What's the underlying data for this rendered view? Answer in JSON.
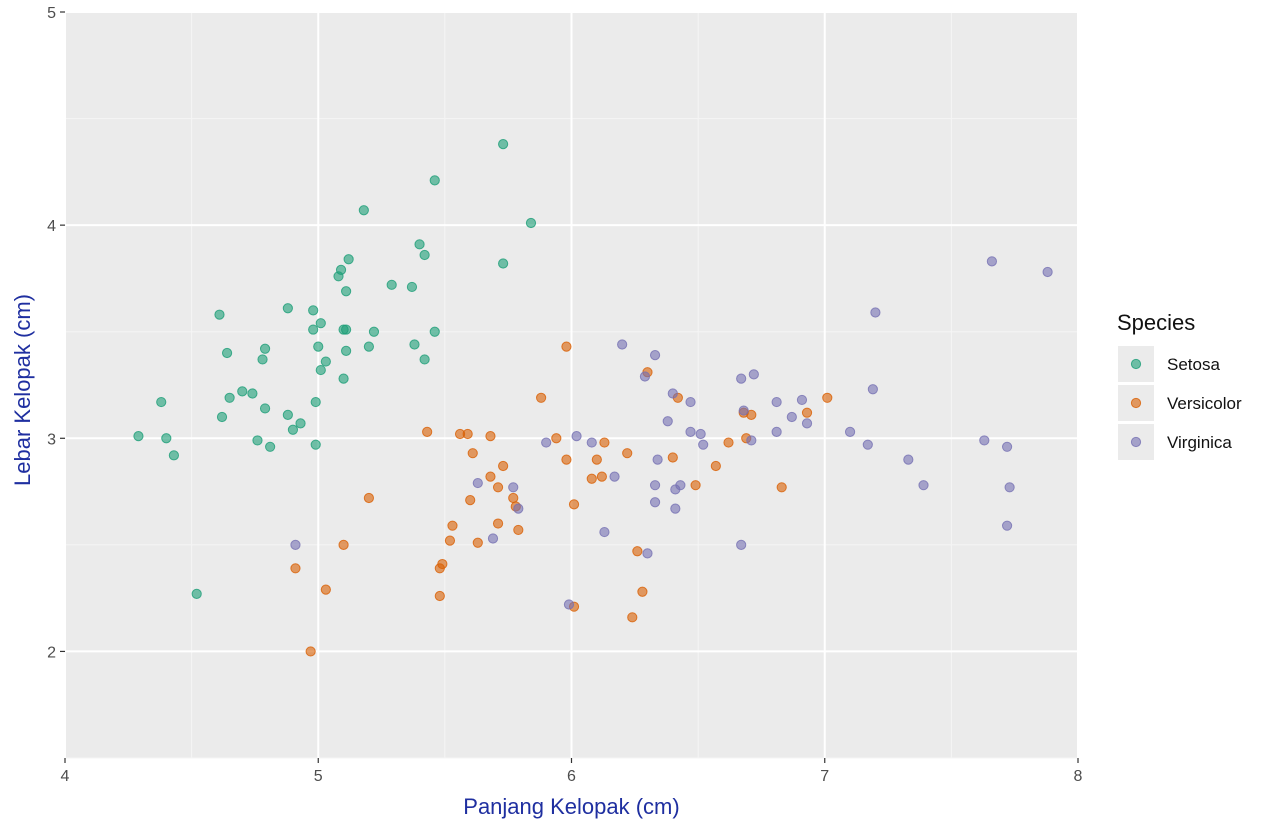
{
  "chart_data": {
    "type": "scatter",
    "xlabel": "Panjang Kelopak (cm)",
    "ylabel": "Lebar Kelopak (cm)",
    "xlim": [
      4,
      8
    ],
    "ylim": [
      1.5,
      5
    ],
    "xticks": [
      4,
      5,
      6,
      7,
      8
    ],
    "xtick_labels": [
      "4",
      "5",
      "6",
      "7",
      "8"
    ],
    "yticks": [
      2,
      3,
      4,
      5
    ],
    "ytick_labels": [
      "2",
      "3",
      "4",
      "5"
    ],
    "grid": true,
    "legend": {
      "title": "Species",
      "placement": "right"
    },
    "series": [
      {
        "name": "Setosa",
        "color": "#1b9e77",
        "points": [
          [
            4.29,
            3.01
          ],
          [
            4.38,
            3.17
          ],
          [
            4.4,
            3.0
          ],
          [
            4.43,
            2.92
          ],
          [
            4.52,
            2.27
          ],
          [
            4.61,
            3.58
          ],
          [
            4.62,
            3.1
          ],
          [
            4.64,
            3.4
          ],
          [
            4.65,
            3.19
          ],
          [
            4.7,
            3.22
          ],
          [
            4.74,
            3.21
          ],
          [
            4.76,
            2.99
          ],
          [
            4.78,
            3.37
          ],
          [
            4.79,
            3.42
          ],
          [
            4.79,
            3.14
          ],
          [
            4.81,
            2.96
          ],
          [
            4.88,
            3.61
          ],
          [
            4.88,
            3.11
          ],
          [
            4.9,
            3.04
          ],
          [
            4.93,
            3.07
          ],
          [
            4.98,
            3.51
          ],
          [
            4.98,
            3.6
          ],
          [
            4.99,
            3.17
          ],
          [
            4.99,
            2.97
          ],
          [
            5.0,
            3.43
          ],
          [
            5.01,
            3.54
          ],
          [
            5.01,
            3.32
          ],
          [
            5.03,
            3.36
          ],
          [
            5.08,
            3.76
          ],
          [
            5.09,
            3.79
          ],
          [
            5.1,
            3.51
          ],
          [
            5.1,
            3.28
          ],
          [
            5.11,
            3.51
          ],
          [
            5.11,
            3.41
          ],
          [
            5.11,
            3.69
          ],
          [
            5.12,
            3.84
          ],
          [
            5.18,
            4.07
          ],
          [
            5.2,
            3.43
          ],
          [
            5.22,
            3.5
          ],
          [
            5.29,
            3.72
          ],
          [
            5.37,
            3.71
          ],
          [
            5.38,
            3.44
          ],
          [
            5.4,
            3.91
          ],
          [
            5.42,
            3.86
          ],
          [
            5.42,
            3.37
          ],
          [
            5.46,
            4.21
          ],
          [
            5.46,
            3.5
          ],
          [
            5.73,
            4.38
          ],
          [
            5.73,
            3.82
          ],
          [
            5.84,
            4.01
          ]
        ]
      },
      {
        "name": "Versicolor",
        "color": "#d95f02",
        "points": [
          [
            4.91,
            2.39
          ],
          [
            4.97,
            2.0
          ],
          [
            5.03,
            2.29
          ],
          [
            5.1,
            2.5
          ],
          [
            5.2,
            2.72
          ],
          [
            5.43,
            3.03
          ],
          [
            5.48,
            2.26
          ],
          [
            5.48,
            2.39
          ],
          [
            5.49,
            2.41
          ],
          [
            5.52,
            2.52
          ],
          [
            5.53,
            2.59
          ],
          [
            5.56,
            3.02
          ],
          [
            5.59,
            3.02
          ],
          [
            5.6,
            2.71
          ],
          [
            5.61,
            2.93
          ],
          [
            5.63,
            2.51
          ],
          [
            5.68,
            2.82
          ],
          [
            5.68,
            3.01
          ],
          [
            5.71,
            2.77
          ],
          [
            5.71,
            2.6
          ],
          [
            5.73,
            2.87
          ],
          [
            5.77,
            2.72
          ],
          [
            5.78,
            2.68
          ],
          [
            5.79,
            2.57
          ],
          [
            5.88,
            3.19
          ],
          [
            5.94,
            3.0
          ],
          [
            5.98,
            3.43
          ],
          [
            5.98,
            2.9
          ],
          [
            6.01,
            2.69
          ],
          [
            6.01,
            2.21
          ],
          [
            6.08,
            2.81
          ],
          [
            6.1,
            2.9
          ],
          [
            6.12,
            2.82
          ],
          [
            6.13,
            2.98
          ],
          [
            6.22,
            2.93
          ],
          [
            6.24,
            2.16
          ],
          [
            6.26,
            2.47
          ],
          [
            6.28,
            2.28
          ],
          [
            6.3,
            3.31
          ],
          [
            6.4,
            2.91
          ],
          [
            6.42,
            3.19
          ],
          [
            6.49,
            2.78
          ],
          [
            6.57,
            2.87
          ],
          [
            6.62,
            2.98
          ],
          [
            6.68,
            3.12
          ],
          [
            6.69,
            3.0
          ],
          [
            6.71,
            3.11
          ],
          [
            6.83,
            2.77
          ],
          [
            6.93,
            3.12
          ],
          [
            7.01,
            3.19
          ]
        ]
      },
      {
        "name": "Virginica",
        "color": "#7570b3",
        "points": [
          [
            4.91,
            2.5
          ],
          [
            5.63,
            2.79
          ],
          [
            5.69,
            2.53
          ],
          [
            5.77,
            2.77
          ],
          [
            5.79,
            2.67
          ],
          [
            5.9,
            2.98
          ],
          [
            5.99,
            2.22
          ],
          [
            6.02,
            3.01
          ],
          [
            6.08,
            2.98
          ],
          [
            6.13,
            2.56
          ],
          [
            6.17,
            2.82
          ],
          [
            6.2,
            3.44
          ],
          [
            6.29,
            3.29
          ],
          [
            6.3,
            2.46
          ],
          [
            6.33,
            3.39
          ],
          [
            6.33,
            2.78
          ],
          [
            6.33,
            2.7
          ],
          [
            6.34,
            2.9
          ],
          [
            6.38,
            3.08
          ],
          [
            6.4,
            3.21
          ],
          [
            6.41,
            2.76
          ],
          [
            6.41,
            2.67
          ],
          [
            6.43,
            2.78
          ],
          [
            6.47,
            3.17
          ],
          [
            6.47,
            3.03
          ],
          [
            6.51,
            3.02
          ],
          [
            6.52,
            2.97
          ],
          [
            6.67,
            2.5
          ],
          [
            6.67,
            3.28
          ],
          [
            6.68,
            3.13
          ],
          [
            6.71,
            2.99
          ],
          [
            6.72,
            3.3
          ],
          [
            6.81,
            3.17
          ],
          [
            6.81,
            3.03
          ],
          [
            6.87,
            3.1
          ],
          [
            6.91,
            3.18
          ],
          [
            6.93,
            3.07
          ],
          [
            7.1,
            3.03
          ],
          [
            7.17,
            2.97
          ],
          [
            7.19,
            3.23
          ],
          [
            7.2,
            3.59
          ],
          [
            7.33,
            2.9
          ],
          [
            7.39,
            2.78
          ],
          [
            7.63,
            2.99
          ],
          [
            7.66,
            3.83
          ],
          [
            7.72,
            2.96
          ],
          [
            7.72,
            2.59
          ],
          [
            7.73,
            2.77
          ],
          [
            7.88,
            3.78
          ]
        ]
      }
    ]
  }
}
